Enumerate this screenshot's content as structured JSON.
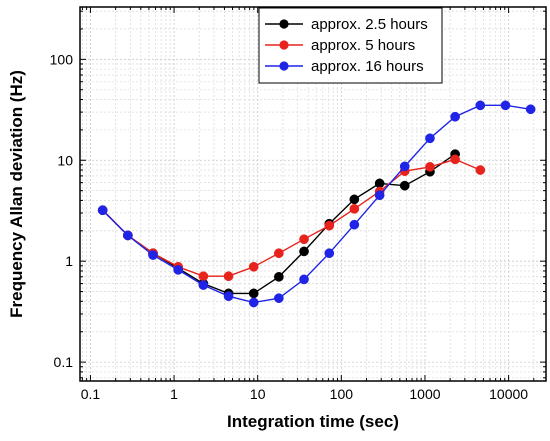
{
  "chart_data": {
    "type": "line",
    "title": "",
    "xlabel": "Integration time (sec)",
    "ylabel": "Frequency Allan deviation (Hz)",
    "xscale": "log",
    "yscale": "log",
    "xlim": [
      0.075,
      28000
    ],
    "ylim": [
      0.065,
      330
    ],
    "grid": true,
    "legend_position": "top-right",
    "x_ticks": [
      {
        "value": 0.1,
        "label": "0.1"
      },
      {
        "value": 1,
        "label": "1"
      },
      {
        "value": 10,
        "label": "10"
      },
      {
        "value": 100,
        "label": "100"
      },
      {
        "value": 1000,
        "label": "1000"
      },
      {
        "value": 10000,
        "label": "10000"
      }
    ],
    "y_ticks": [
      {
        "value": 0.1,
        "label": "0.1"
      },
      {
        "value": 1,
        "label": "1"
      },
      {
        "value": 10,
        "label": "10"
      },
      {
        "value": 100,
        "label": "100"
      }
    ],
    "series": [
      {
        "name": "approx. 2.5 hours",
        "color": "#000000",
        "x": [
          0.14,
          0.28,
          0.56,
          1.12,
          2.24,
          4.48,
          8.96,
          17.9,
          35.8,
          71.7,
          143,
          287,
          573,
          1147,
          2294
        ],
        "y": [
          3.2,
          1.8,
          1.2,
          0.85,
          0.6,
          0.48,
          0.48,
          0.7,
          1.25,
          2.35,
          4.1,
          5.9,
          5.6,
          7.7,
          11.5
        ]
      },
      {
        "name": "approx. 5 hours",
        "color": "#e8231c",
        "x": [
          0.14,
          0.28,
          0.56,
          1.12,
          2.24,
          4.48,
          8.96,
          17.9,
          35.8,
          71.7,
          143,
          287,
          573,
          1147,
          2294,
          4588
        ],
        "y": [
          3.2,
          1.8,
          1.2,
          0.88,
          0.71,
          0.71,
          0.88,
          1.2,
          1.65,
          2.25,
          3.3,
          4.9,
          7.8,
          8.6,
          10.2,
          8.0
        ]
      },
      {
        "name": "approx. 16 hours",
        "color": "#1f24e6",
        "x": [
          0.14,
          0.28,
          0.56,
          1.12,
          2.24,
          4.48,
          8.96,
          17.9,
          35.8,
          71.7,
          143,
          287,
          573,
          1147,
          2294,
          4588,
          9176,
          18352
        ],
        "y": [
          3.2,
          1.8,
          1.15,
          0.82,
          0.58,
          0.45,
          0.39,
          0.43,
          0.66,
          1.2,
          2.3,
          4.5,
          8.7,
          16.5,
          27,
          35,
          35,
          32
        ]
      }
    ]
  }
}
